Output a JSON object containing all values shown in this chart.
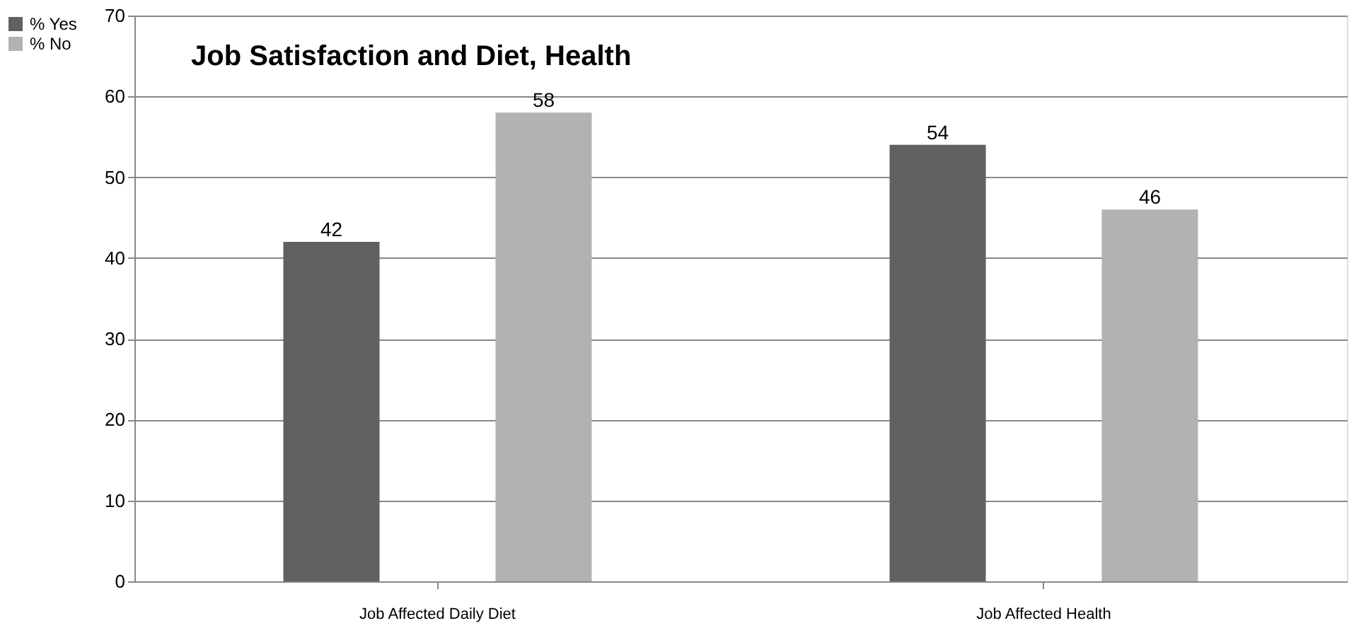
{
  "chart_data": {
    "type": "bar",
    "title": "Job Satisfaction and Diet, Health",
    "categories": [
      "Job Affected Daily Diet",
      "Job Affected Health"
    ],
    "series": [
      {
        "name": "% Yes",
        "color": "#606060",
        "values": [
          42,
          54
        ]
      },
      {
        "name": "% No",
        "color": "#b2b2b2",
        "values": [
          58,
          46
        ]
      }
    ],
    "ylim": [
      0,
      70
    ],
    "yticks": [
      0,
      10,
      20,
      30,
      40,
      50,
      60,
      70
    ],
    "grid": "y",
    "legend": "left",
    "data_labels": true
  }
}
